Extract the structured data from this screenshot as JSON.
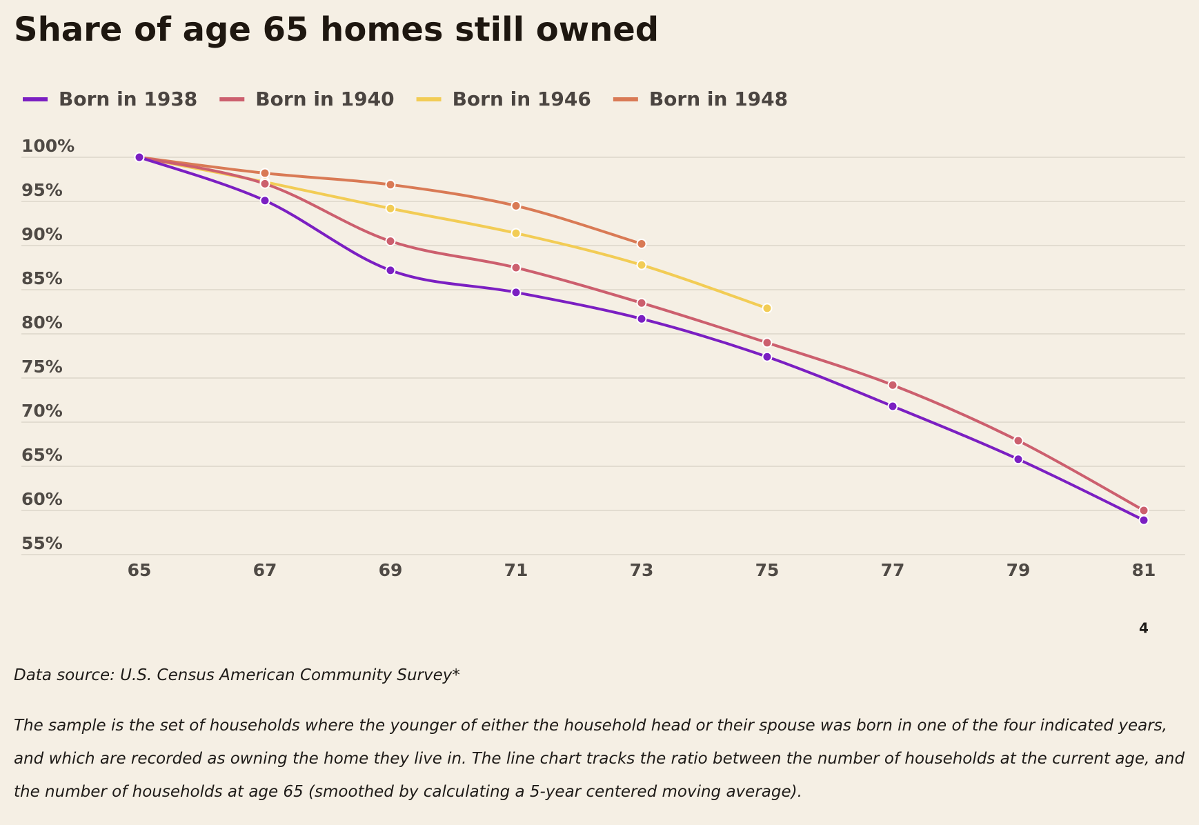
{
  "chart_data": {
    "type": "line",
    "title": "Share of age 65 homes still owned",
    "x": [
      65,
      67,
      69,
      71,
      73,
      75,
      77,
      79,
      81
    ],
    "series": [
      {
        "name": "Born in 1938",
        "color": "#7b1fc2",
        "values": [
          100,
          95.1,
          87.2,
          84.7,
          81.7,
          77.4,
          71.8,
          65.8,
          58.9
        ]
      },
      {
        "name": "Born in 1940",
        "color": "#cc5f6e",
        "values": [
          100,
          97,
          90.5,
          87.5,
          83.5,
          79,
          74.2,
          67.9,
          60
        ]
      },
      {
        "name": "Born in 1946",
        "color": "#f2cc55",
        "values": [
          100,
          97.2,
          94.2,
          91.4,
          87.8,
          82.9,
          null,
          null,
          null
        ]
      },
      {
        "name": "Born in 1948",
        "color": "#d97a55",
        "values": [
          100,
          98.2,
          96.9,
          94.5,
          90.2,
          null,
          null,
          null,
          null
        ]
      }
    ],
    "xlim": [
      65,
      81
    ],
    "xticks": [
      65,
      67,
      69,
      71,
      73,
      75,
      77,
      79,
      81
    ],
    "ylim": [
      55,
      100
    ],
    "yticks": [
      {
        "value": 100,
        "label": "100%"
      },
      {
        "value": 95,
        "label": "95%"
      },
      {
        "value": 90,
        "label": "90%"
      },
      {
        "value": 85,
        "label": "85%"
      },
      {
        "value": 80,
        "label": "80%"
      },
      {
        "value": 75,
        "label": "75%"
      },
      {
        "value": 70,
        "label": "70%"
      },
      {
        "value": 65,
        "label": "65%"
      },
      {
        "value": 60,
        "label": "60%"
      },
      {
        "value": 55,
        "label": "55%"
      }
    ],
    "grid": true,
    "legend": "top",
    "annotation": "4",
    "source": "Data source: U.S. Census American Community Survey*",
    "note": "The sample is the set of households where the younger of either the household head or their spouse was born in one of the four indicated years, and which are recorded as owning the home they live in. The line chart tracks the ratio between the number of households at the current age, and the number of households at age 65 (smoothed by calculating a 5-year centered moving average)."
  }
}
